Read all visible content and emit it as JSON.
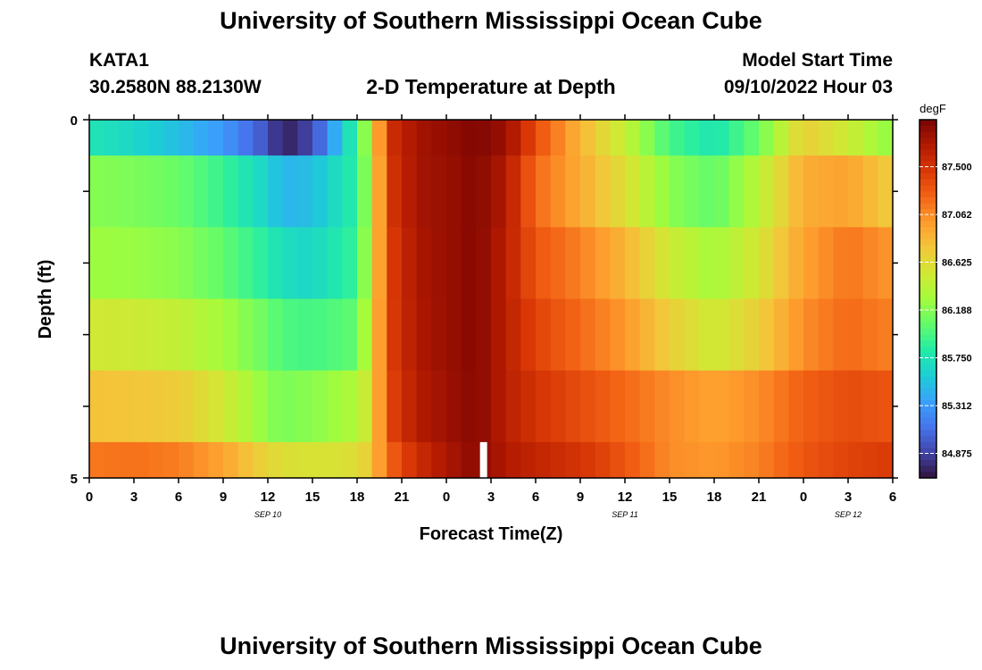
{
  "header": {
    "title": "University of Southern Mississippi Ocean Cube",
    "station": "KATA1",
    "coords": "30.2580N  88.2130W",
    "plot_title": "2-D Temperature at Depth",
    "model_start_label": "Model Start Time",
    "model_start_value": "09/10/2022 Hour 03"
  },
  "footer": {
    "title": "University of Southern Mississippi Ocean Cube"
  },
  "colors": {
    "ramp": [
      "#30123b",
      "#4145ab",
      "#4675ed",
      "#39a2fc",
      "#1bcfd4",
      "#24eca6",
      "#61fc6c",
      "#a4fc3b",
      "#d1e834",
      "#f3c63a",
      "#fe9b2d",
      "#f36315",
      "#d93806",
      "#b11901",
      "#7a0403"
    ],
    "now_marker": "#ffffff"
  },
  "chart_data": {
    "type": "heatmap",
    "title": "2-D Temperature at Depth",
    "xlabel": "Forecast Time(Z)",
    "ylabel": "Depth (ft)",
    "x_range_hours": [
      0,
      54
    ],
    "y_range_ft": [
      0,
      5
    ],
    "y_ticks": [
      "0",
      "5"
    ],
    "x_tick_labels": [
      "0",
      "3",
      "6",
      "9",
      "12",
      "15",
      "18",
      "21",
      "0",
      "3",
      "6",
      "9",
      "12",
      "15",
      "18",
      "21",
      "0",
      "3",
      "6"
    ],
    "date_labels": [
      {
        "hour": 12,
        "text": "SEP 10"
      },
      {
        "hour": 36,
        "text": "SEP 11"
      },
      {
        "hour": 51,
        "text": "SEP 12"
      }
    ],
    "depth_bins_ft": [
      [
        0,
        0.5
      ],
      [
        0.5,
        1.5
      ],
      [
        1.5,
        2.5
      ],
      [
        2.5,
        3.5
      ],
      [
        3.5,
        4.5
      ],
      [
        4.5,
        5
      ]
    ],
    "current_time_hour": 26.5,
    "colorbar": {
      "unit": "degF",
      "min": 84.65,
      "max": 87.93,
      "tick_labels": [
        "84.875",
        "85.312",
        "85.750",
        "86.188",
        "86.625",
        "87.062",
        "87.500"
      ]
    },
    "profiles_degF": [
      {
        "hour": 0,
        "values": [
          85.75,
          86.19,
          86.27,
          86.52,
          86.78,
          87.14
        ]
      },
      {
        "hour": 3,
        "values": [
          85.65,
          86.15,
          86.25,
          86.5,
          86.76,
          87.17
        ]
      },
      {
        "hour": 6,
        "values": [
          85.5,
          86.08,
          86.2,
          86.44,
          86.72,
          87.12
        ]
      },
      {
        "hour": 9,
        "values": [
          85.3,
          85.9,
          86.05,
          86.3,
          86.52,
          86.94
        ]
      },
      {
        "hour": 12,
        "values": [
          84.95,
          85.62,
          85.82,
          86.08,
          86.2,
          86.65
        ]
      },
      {
        "hour": 13,
        "values": [
          84.7,
          85.45,
          85.7,
          85.98,
          86.15,
          86.6
        ]
      },
      {
        "hour": 15,
        "values": [
          84.9,
          85.5,
          85.65,
          85.95,
          86.2,
          86.55
        ]
      },
      {
        "hour": 18,
        "values": [
          85.9,
          85.85,
          85.9,
          86.05,
          86.35,
          86.6
        ]
      },
      {
        "hour": 19,
        "values": [
          86.5,
          86.45,
          86.5,
          86.55,
          86.6,
          86.75
        ]
      },
      {
        "hour": 20,
        "values": [
          87.5,
          87.45,
          87.4,
          87.4,
          87.35,
          87.2
        ]
      },
      {
        "hour": 22,
        "values": [
          87.75,
          87.75,
          87.72,
          87.7,
          87.68,
          87.55
        ]
      },
      {
        "hour": 24,
        "values": [
          87.82,
          87.8,
          87.8,
          87.8,
          87.78,
          87.72
        ]
      },
      {
        "hour": 26,
        "values": [
          87.9,
          87.88,
          87.88,
          87.88,
          87.88,
          87.86
        ]
      },
      {
        "hour": 28,
        "values": [
          87.8,
          87.7,
          87.65,
          87.65,
          87.65,
          87.7
        ]
      },
      {
        "hour": 30,
        "values": [
          87.35,
          87.2,
          87.3,
          87.4,
          87.5,
          87.6
        ]
      },
      {
        "hour": 33,
        "values": [
          86.85,
          86.9,
          87.1,
          87.2,
          87.35,
          87.5
        ]
      },
      {
        "hour": 36,
        "values": [
          86.45,
          86.6,
          86.85,
          87.0,
          87.2,
          87.3
        ]
      },
      {
        "hour": 39,
        "values": [
          85.95,
          86.2,
          86.5,
          86.7,
          87.05,
          87.05
        ]
      },
      {
        "hour": 42,
        "values": [
          85.75,
          86.05,
          86.3,
          86.5,
          86.95,
          87.0
        ]
      },
      {
        "hour": 45,
        "values": [
          86.1,
          86.4,
          86.55,
          86.7,
          87.05,
          87.1
        ]
      },
      {
        "hour": 48,
        "values": [
          86.7,
          86.9,
          86.95,
          87.05,
          87.25,
          87.3
        ]
      },
      {
        "hour": 51,
        "values": [
          86.5,
          86.95,
          87.15,
          87.2,
          87.35,
          87.4
        ]
      },
      {
        "hour": 54,
        "values": [
          86.2,
          86.7,
          87.0,
          87.1,
          87.3,
          87.45
        ]
      }
    ]
  }
}
